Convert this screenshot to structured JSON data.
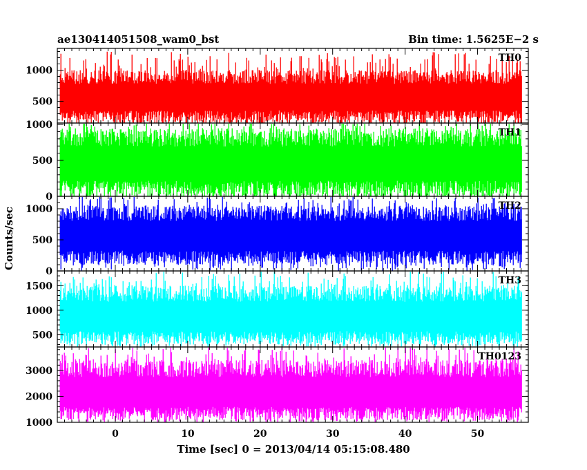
{
  "title_left": "ae130414051508_wam0_bst",
  "title_right": "Bin time: 1.5625E−2 s",
  "ylabel": "Counts/sec",
  "xlabel": "Time [sec] 0 = 2013/04/14 05:15:08.480",
  "chart_data": {
    "type": "line",
    "title": "ae130414051508_wam0_bst",
    "subtitle": "Bin time: 1.5625E−2 s",
    "xlabel": "Time [sec] 0 = 2013/04/14 05:15:08.480",
    "ylabel": "Counts/sec",
    "xlim": [
      -8,
      57
    ],
    "x_ticks": [
      "0",
      "10",
      "20",
      "30",
      "40",
      "50"
    ],
    "x_tick_values": [
      0,
      10,
      20,
      30,
      40,
      50
    ],
    "bin_time": 0.015625,
    "series_x_range": [
      -7.6,
      56.1
    ],
    "grid": false,
    "panels": [
      {
        "name": "TH0",
        "color": "#ff0000",
        "ylim": [
          150,
          1350
        ],
        "y_ticks": [
          500,
          1000
        ],
        "y_tick_labels": [
          "500",
          "1000"
        ],
        "typical_range": [
          150,
          1000
        ],
        "mean": 600,
        "max": 1300
      },
      {
        "name": "TH1",
        "color": "#00ff00",
        "ylim": [
          0,
          1020
        ],
        "y_ticks": [
          0,
          500,
          1000
        ],
        "y_tick_labels": [
          "0",
          "500",
          "1000"
        ],
        "typical_range": [
          0,
          950
        ],
        "mean": 480,
        "max": 1050
      },
      {
        "name": "TH2",
        "color": "#0000ff",
        "ylim": [
          0,
          1200
        ],
        "y_ticks": [
          0,
          500,
          1000
        ],
        "y_tick_labels": [
          "0",
          "500",
          "1000"
        ],
        "typical_range": [
          100,
          1050
        ],
        "mean": 600,
        "max": 1200
      },
      {
        "name": "TH3",
        "color": "#00ffff",
        "ylim": [
          250,
          1800
        ],
        "y_ticks": [
          500,
          1000,
          1500
        ],
        "y_tick_labels": [
          "500",
          "1000",
          "1500"
        ],
        "typical_range": [
          300,
          1500
        ],
        "mean": 900,
        "max": 1800
      },
      {
        "name": "TH0123",
        "color": "#ff00ff",
        "ylim": [
          1000,
          3900
        ],
        "y_ticks": [
          1000,
          2000,
          3000
        ],
        "y_tick_labels": [
          "1000",
          "2000",
          "3000"
        ],
        "typical_range": [
          1100,
          3400
        ],
        "mean": 2200,
        "max": 3900
      }
    ]
  }
}
